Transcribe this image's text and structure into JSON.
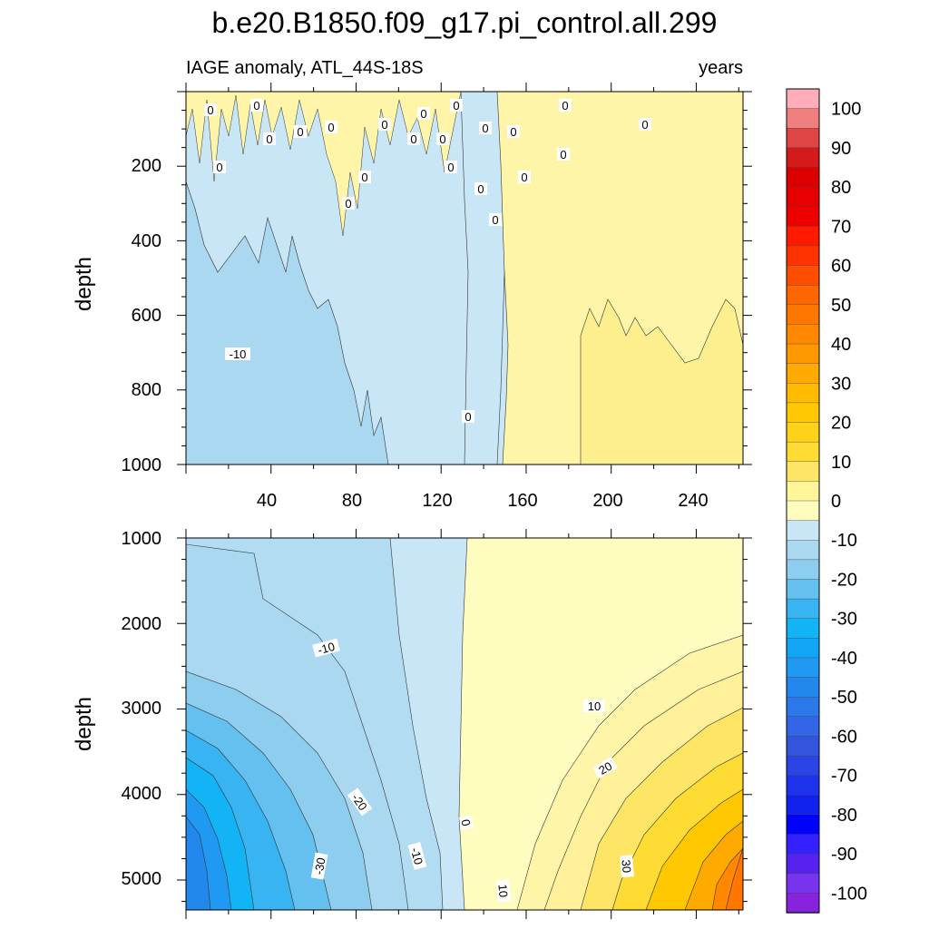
{
  "figure": {
    "title": "b.e20.B1850.f09_g17.pi_control.all.299"
  },
  "chart_data": [
    {
      "type": "heatmap",
      "panel": "upper",
      "subtitle_left": "IAGE anomaly, ATL_44S-18S",
      "subtitle_right": "years",
      "xlabel": "",
      "ylabel": "depth",
      "xlim": [
        0,
        262
      ],
      "ylim": [
        1000,
        0
      ],
      "xticks": [
        "40",
        "80",
        "120",
        "160",
        "200",
        "240"
      ],
      "yticks": [
        "200",
        "400",
        "600",
        "800",
        "1000"
      ],
      "contour_labels": [
        "0",
        "0",
        "0",
        "0",
        "0",
        "0",
        "0",
        "0",
        "0",
        "0",
        "0",
        "0",
        "0",
        "0",
        "0",
        "0",
        "0",
        "0",
        "0",
        "0",
        "0",
        "0",
        "-10",
        "0"
      ],
      "regions": [
        {
          "level": "-20 to -10",
          "x_start": 0,
          "x_end": 96,
          "depth_from": 500
        },
        {
          "level": "-10 to 0",
          "x_start": 0,
          "x_end": 150,
          "depth_from": 0
        },
        {
          "level": "0 to 5",
          "x_start": 150,
          "x_end": 262,
          "depth_from": 0
        },
        {
          "level": "5 to 10",
          "x_start": 185,
          "x_end": 262,
          "depth_from": 620
        }
      ]
    },
    {
      "type": "heatmap",
      "panel": "lower",
      "xlabel": "",
      "ylabel": "depth",
      "xlim": [
        0,
        262
      ],
      "ylim": [
        5350,
        1000
      ],
      "yticks": [
        "1000",
        "2000",
        "3000",
        "4000",
        "5000"
      ],
      "contour_labels": [
        "-10",
        "10",
        "20",
        "-20",
        "0",
        "-10",
        "-30",
        "30",
        "10"
      ],
      "anomaly_pattern": "negative (blue) in early years, positive (yellow/orange) in later years, magnitude increasing with depth",
      "min_value": -40,
      "max_value": 40,
      "zero_crossing_year": 128
    },
    {
      "type": "colorbar",
      "labels": [
        "100",
        "90",
        "80",
        "70",
        "60",
        "50",
        "40",
        "30",
        "20",
        "10",
        "0",
        "-10",
        "-20",
        "-30",
        "-40",
        "-50",
        "-60",
        "-70",
        "-80",
        "-90",
        "-100"
      ],
      "colors": [
        "#ffaeb9",
        "#f08080",
        "#e04545",
        "#d41a1a",
        "#dd0000",
        "#e60000",
        "#ee0000",
        "#ff1a00",
        "#ff3300",
        "#ff4d00",
        "#ff6600",
        "#ff7700",
        "#ff8800",
        "#ff9900",
        "#ffaa00",
        "#ffbb00",
        "#ffc800",
        "#ffd21a",
        "#ffdc33",
        "#ffe566",
        "#fff599",
        "#fffcc0",
        "#c8e6f5",
        "#a9d8f0",
        "#8dcdee",
        "#63c0ef",
        "#38b4f2",
        "#12b4f5",
        "#10a5f5",
        "#1f99f2",
        "#2288ee",
        "#2a78ea",
        "#3366e6",
        "#3355dd",
        "#2a44e6",
        "#1f33ee",
        "#1122ee",
        "#0000ff",
        "#3322ff",
        "#5522ee",
        "#7733ee",
        "#8822dd"
      ]
    }
  ]
}
